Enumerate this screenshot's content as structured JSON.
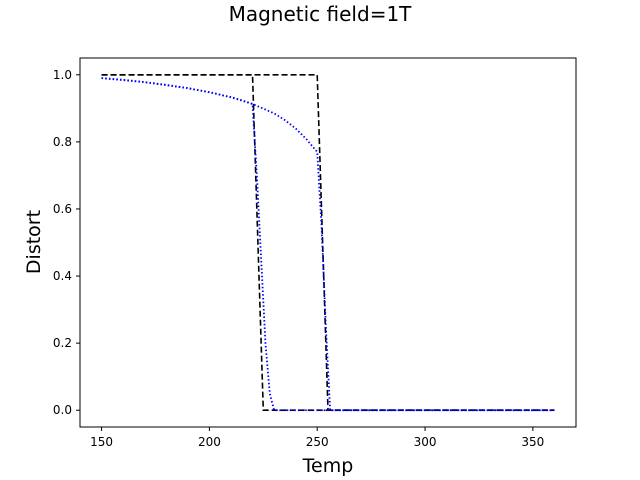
{
  "chart_data": {
    "type": "line",
    "title": "Magnetic field=1T",
    "xlabel": "Temp",
    "ylabel": "Distort",
    "xlim": [
      140,
      370
    ],
    "ylim": [
      -0.05,
      1.05
    ],
    "xticks": [
      150,
      200,
      250,
      300,
      350
    ],
    "yticks": [
      0.0,
      0.2,
      0.4,
      0.6,
      0.8,
      1.0
    ],
    "grid": false,
    "legend": "none",
    "series": [
      {
        "style": "dashed",
        "color": "#000000",
        "x": [
          150,
          220,
          225,
          360
        ],
        "y": [
          1.0,
          1.0,
          0.0,
          0.0
        ]
      },
      {
        "style": "dashed",
        "color": "#000000",
        "x": [
          150,
          250,
          255,
          360
        ],
        "y": [
          1.0,
          1.0,
          0.0,
          0.0
        ]
      },
      {
        "style": "dotted",
        "color": "#0000ff",
        "x": [
          150,
          160,
          170,
          180,
          190,
          200,
          210,
          215,
          220,
          222,
          224,
          226,
          228,
          230,
          360
        ],
        "y": [
          0.99,
          0.985,
          0.978,
          0.97,
          0.96,
          0.948,
          0.933,
          0.924,
          0.913,
          0.7,
          0.45,
          0.2,
          0.05,
          0.0,
          0.0
        ]
      },
      {
        "style": "dotted",
        "color": "#0000ff",
        "x": [
          150,
          170,
          190,
          200,
          210,
          220,
          230,
          235,
          240,
          245,
          248,
          250,
          252,
          254,
          256,
          360
        ],
        "y": [
          0.99,
          0.978,
          0.96,
          0.948,
          0.933,
          0.913,
          0.885,
          0.865,
          0.84,
          0.808,
          0.785,
          0.77,
          0.55,
          0.25,
          0.0,
          0.0
        ]
      }
    ]
  }
}
